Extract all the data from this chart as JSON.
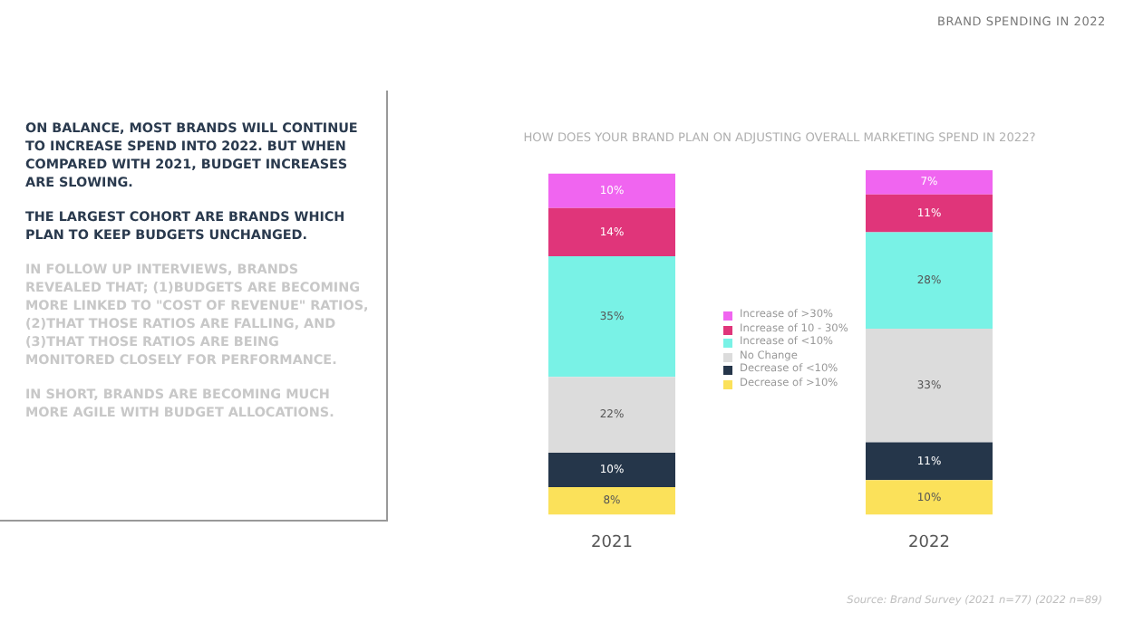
{
  "chart_data": {
    "type": "bar",
    "stacked": true,
    "title": "HOW DOES YOUR BRAND PLAN ON ADJUSTING OVERALL MARKETING SPEND IN 2022?",
    "categories": [
      "2021",
      "2022"
    ],
    "series": [
      {
        "name": "Decrease of >10%",
        "color": "#fbe15a",
        "values": [
          8,
          10
        ],
        "value_labels": [
          "8%",
          "10%"
        ]
      },
      {
        "name": "Decrease of <10%",
        "color": "#25364a",
        "values": [
          10,
          11
        ],
        "value_labels": [
          "10%",
          "11%"
        ]
      },
      {
        "name": "No Change",
        "color": "#dcdcdc",
        "values": [
          22,
          33
        ],
        "value_labels": [
          "22%",
          "33%"
        ]
      },
      {
        "name": "Increase of <10%",
        "color": "#79f2e6",
        "values": [
          35,
          28
        ],
        "value_labels": [
          "35%",
          "28%"
        ]
      },
      {
        "name": "Increase of 10 - 30%",
        "color": "#e0357a",
        "values": [
          14,
          11
        ],
        "value_labels": [
          "14%",
          "11%"
        ]
      },
      {
        "name": "Increase of >30%",
        "color": "#f065f0",
        "values": [
          10,
          7
        ],
        "value_labels": [
          "10%",
          "7%"
        ]
      }
    ],
    "legend": "center",
    "grid": false,
    "annotations": [
      "BRAND SPENDING IN 2022",
      "ON BALANCE, MOST BRANDS WILL CONTINUE TO INCREASE SPEND INTO 2022. BUT WHEN COMPARED WITH 2021, BUDGET INCREASES ARE SLOWING.",
      "THE LARGEST COHORT ARE BRANDS WHICH PLAN TO KEEP BUDGETS UNCHANGED.",
      "IN FOLLOW UP INTERVIEWS, BRANDS REVEALED THAT; (1)BUDGETS ARE BECOMING MORE LINKED TO \"COST OF REVENUE\" RATIOS, (2)THAT THOSE RATIOS ARE FALLING, AND (3)THAT THOSE RATIOS ARE BEING MONITORED CLOSELY FOR PERFORMANCE.",
      "IN SHORT, BRANDS ARE BECOMING MUCH MORE AGILE WITH BUDGET ALLOCATIONS.",
      "Source: Brand Survey (2021 n=77) (2022 n=89)"
    ]
  }
}
